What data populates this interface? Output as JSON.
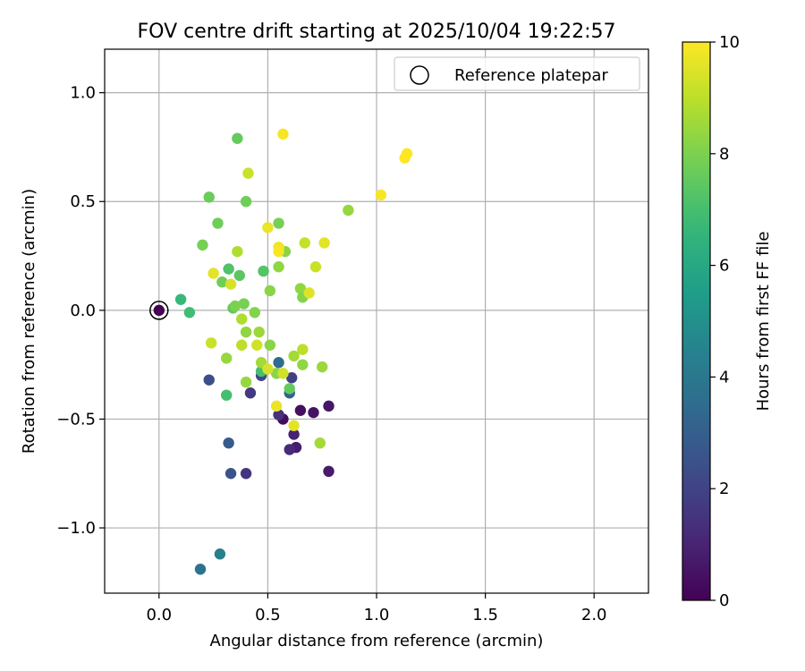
{
  "chart_data": {
    "type": "scatter",
    "title": "FOV centre drift starting at 2025/10/04 19:22:57",
    "xlabel": "Angular distance from reference (arcmin)",
    "ylabel": "Rotation from reference (arcmin)",
    "xlim": [
      -0.25,
      2.25
    ],
    "ylim": [
      -1.3,
      1.2
    ],
    "xticks": [
      0.0,
      0.5,
      1.0,
      1.5,
      2.0
    ],
    "xtick_labels": [
      "0.0",
      "0.5",
      "1.0",
      "1.5",
      "2.0"
    ],
    "yticks": [
      -1.0,
      -0.5,
      0.0,
      0.5,
      1.0
    ],
    "ytick_labels": [
      "−1.0",
      "−0.5",
      "0.0",
      "0.5",
      "1.0"
    ],
    "grid": true,
    "legend": {
      "position": "top-right",
      "entries": [
        {
          "label": "Reference platepar",
          "marker": "open-circle"
        }
      ]
    },
    "reference_point": {
      "x": 0.0,
      "y": 0.0,
      "hours": 0
    },
    "colorbar": {
      "label": "Hours from first FF file",
      "colormap": "viridis",
      "range": [
        0,
        10
      ],
      "ticks": [
        0,
        2,
        4,
        6,
        8,
        10
      ],
      "tick_labels": [
        "0",
        "2",
        "4",
        "6",
        "8",
        "10"
      ]
    },
    "points": [
      {
        "x": 0.57,
        "y": -0.5,
        "hours": 0.3
      },
      {
        "x": 0.65,
        "y": -0.46,
        "hours": 0.4
      },
      {
        "x": 0.71,
        "y": -0.47,
        "hours": 0.5
      },
      {
        "x": 0.78,
        "y": -0.44,
        "hours": 0.6
      },
      {
        "x": 0.78,
        "y": -0.74,
        "hours": 0.7
      },
      {
        "x": 0.63,
        "y": -0.63,
        "hours": 0.8
      },
      {
        "x": 0.62,
        "y": -0.57,
        "hours": 1.0
      },
      {
        "x": 0.6,
        "y": -0.64,
        "hours": 1.2
      },
      {
        "x": 0.55,
        "y": -0.48,
        "hours": 1.4
      },
      {
        "x": 0.4,
        "y": -0.75,
        "hours": 1.5
      },
      {
        "x": 0.42,
        "y": -0.38,
        "hours": 1.7
      },
      {
        "x": 0.61,
        "y": -0.31,
        "hours": 1.9
      },
      {
        "x": 0.47,
        "y": -0.3,
        "hours": 2.1
      },
      {
        "x": 0.23,
        "y": -0.32,
        "hours": 2.4
      },
      {
        "x": 0.33,
        "y": -0.75,
        "hours": 2.6
      },
      {
        "x": 0.32,
        "y": -0.61,
        "hours": 2.9
      },
      {
        "x": 0.6,
        "y": -0.38,
        "hours": 3.1
      },
      {
        "x": 0.55,
        "y": -0.24,
        "hours": 3.5
      },
      {
        "x": 0.19,
        "y": -1.19,
        "hours": 3.8
      },
      {
        "x": 0.28,
        "y": -1.12,
        "hours": 4.3
      },
      {
        "x": 0.1,
        "y": 0.05,
        "hours": 6.7
      },
      {
        "x": 0.14,
        "y": -0.01,
        "hours": 6.9
      },
      {
        "x": 0.31,
        "y": -0.39,
        "hours": 7.0
      },
      {
        "x": 0.32,
        "y": 0.19,
        "hours": 7.2
      },
      {
        "x": 0.47,
        "y": -0.28,
        "hours": 7.0
      },
      {
        "x": 0.48,
        "y": 0.18,
        "hours": 7.3
      },
      {
        "x": 0.34,
        "y": 0.01,
        "hours": 7.5
      },
      {
        "x": 0.6,
        "y": -0.36,
        "hours": 7.6
      },
      {
        "x": 0.37,
        "y": 0.16,
        "hours": 7.4
      },
      {
        "x": 0.36,
        "y": 0.79,
        "hours": 7.6
      },
      {
        "x": 0.23,
        "y": 0.52,
        "hours": 7.7
      },
      {
        "x": 0.4,
        "y": 0.5,
        "hours": 7.8
      },
      {
        "x": 0.27,
        "y": 0.4,
        "hours": 7.8
      },
      {
        "x": 0.2,
        "y": 0.3,
        "hours": 7.9
      },
      {
        "x": 0.29,
        "y": 0.13,
        "hours": 7.8
      },
      {
        "x": 0.39,
        "y": 0.03,
        "hours": 7.9
      },
      {
        "x": 0.35,
        "y": 0.02,
        "hours": 8.0
      },
      {
        "x": 0.44,
        "y": -0.01,
        "hours": 8.1
      },
      {
        "x": 0.51,
        "y": 0.09,
        "hours": 8.2
      },
      {
        "x": 0.55,
        "y": 0.4,
        "hours": 7.9
      },
      {
        "x": 0.58,
        "y": 0.27,
        "hours": 8.2
      },
      {
        "x": 0.55,
        "y": 0.2,
        "hours": 8.3
      },
      {
        "x": 0.65,
        "y": 0.1,
        "hours": 8.3
      },
      {
        "x": 0.66,
        "y": 0.06,
        "hours": 8.1
      },
      {
        "x": 0.31,
        "y": -0.22,
        "hours": 8.4
      },
      {
        "x": 0.4,
        "y": -0.1,
        "hours": 8.3
      },
      {
        "x": 0.46,
        "y": -0.1,
        "hours": 8.5
      },
      {
        "x": 0.51,
        "y": -0.16,
        "hours": 8.2
      },
      {
        "x": 0.47,
        "y": -0.24,
        "hours": 8.6
      },
      {
        "x": 0.4,
        "y": -0.33,
        "hours": 8.4
      },
      {
        "x": 0.54,
        "y": -0.29,
        "hours": 8.2
      },
      {
        "x": 0.62,
        "y": -0.21,
        "hours": 8.6
      },
      {
        "x": 0.66,
        "y": -0.25,
        "hours": 8.3
      },
      {
        "x": 0.75,
        "y": -0.26,
        "hours": 8.5
      },
      {
        "x": 0.87,
        "y": 0.46,
        "hours": 8.4
      },
      {
        "x": 0.74,
        "y": -0.61,
        "hours": 8.6
      },
      {
        "x": 0.38,
        "y": -0.04,
        "hours": 8.8
      },
      {
        "x": 0.36,
        "y": 0.27,
        "hours": 8.8
      },
      {
        "x": 0.41,
        "y": 0.63,
        "hours": 9.2
      },
      {
        "x": 0.38,
        "y": -0.16,
        "hours": 9.0
      },
      {
        "x": 0.24,
        "y": -0.15,
        "hours": 9.2
      },
      {
        "x": 0.45,
        "y": -0.16,
        "hours": 9.3
      },
      {
        "x": 0.5,
        "y": -0.27,
        "hours": 9.4
      },
      {
        "x": 0.57,
        "y": -0.29,
        "hours": 9.3
      },
      {
        "x": 0.66,
        "y": -0.18,
        "hours": 9.0
      },
      {
        "x": 0.67,
        "y": 0.31,
        "hours": 9.1
      },
      {
        "x": 0.72,
        "y": 0.2,
        "hours": 9.2
      },
      {
        "x": 0.76,
        "y": 0.31,
        "hours": 9.6
      },
      {
        "x": 0.69,
        "y": 0.08,
        "hours": 9.5
      },
      {
        "x": 0.33,
        "y": 0.12,
        "hours": 9.4
      },
      {
        "x": 0.25,
        "y": 0.17,
        "hours": 9.6
      },
      {
        "x": 0.5,
        "y": 0.38,
        "hours": 9.7
      },
      {
        "x": 0.55,
        "y": 0.29,
        "hours": 9.8
      },
      {
        "x": 0.55,
        "y": 0.27,
        "hours": 9.9
      },
      {
        "x": 0.57,
        "y": 0.81,
        "hours": 9.9
      },
      {
        "x": 0.54,
        "y": -0.44,
        "hours": 9.7
      },
      {
        "x": 0.62,
        "y": -0.53,
        "hours": 9.6
      },
      {
        "x": 1.02,
        "y": 0.53,
        "hours": 9.9
      },
      {
        "x": 1.13,
        "y": 0.7,
        "hours": 10.0
      },
      {
        "x": 1.14,
        "y": 0.72,
        "hours": 10.0
      }
    ]
  }
}
